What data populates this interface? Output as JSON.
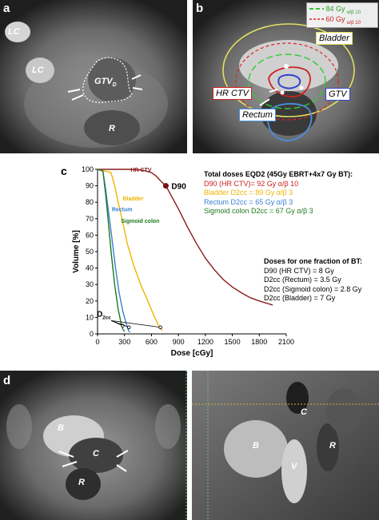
{
  "panels": {
    "a": {
      "letter": "a",
      "labels": {
        "lc_top": "LC",
        "lc_mid": "LC",
        "gtv": "GTV",
        "gtv_sub": "D",
        "r": "R"
      }
    },
    "b": {
      "letter": "b",
      "legend": [
        {
          "text": "84 Gy",
          "sub": "α/β 10",
          "color": "#2ecc2e",
          "dash": "8,4"
        },
        {
          "text": "60 Gy",
          "sub": "α/β 10",
          "color": "#d22",
          "dash": "4,3"
        }
      ],
      "labels": {
        "bladder": "Bladder",
        "hr_ctv": "HR CTV",
        "gtv": "GTV",
        "rectum": "Rectum"
      }
    },
    "c": {
      "letter": "c"
    },
    "d": {
      "letter": "d",
      "labels": {
        "b_left": "B",
        "c_left": "C",
        "r_left": "R",
        "b_right": "B",
        "c_right": "C",
        "v_right": "V",
        "r_right": "R"
      }
    }
  },
  "chart_data": {
    "type": "line",
    "xlabel": "Dose [cGy]",
    "ylabel": "Volume [%]",
    "xlim": [
      0,
      2100
    ],
    "ylim": [
      0,
      100
    ],
    "xticks": [
      0,
      300,
      600,
      900,
      1200,
      1500,
      1800,
      2100
    ],
    "yticks": [
      0,
      10,
      20,
      30,
      40,
      50,
      60,
      70,
      80,
      90,
      100
    ],
    "series": [
      {
        "name": "HR CTV",
        "color": "#8b1a1a",
        "x": [
          0,
          350,
          500,
          600,
          650,
          700,
          760,
          800,
          900,
          1000,
          1100,
          1200,
          1300,
          1400,
          1500,
          1600,
          1700,
          1800,
          1950
        ],
        "y": [
          100,
          100,
          99.5,
          98,
          96,
          93,
          90,
          86,
          76,
          65,
          55,
          46,
          39,
          33,
          28.5,
          25,
          22,
          20,
          17.5
        ]
      },
      {
        "name": "Bladder",
        "color": "#f0b400",
        "x": [
          0,
          150,
          190,
          230,
          280,
          330,
          400,
          480,
          560,
          620,
          680,
          720
        ],
        "y": [
          100,
          98,
          90,
          80,
          68,
          55,
          42,
          30,
          20,
          12,
          5,
          2
        ]
      },
      {
        "name": "Rectum",
        "color": "#3a80d0",
        "x": [
          0,
          60,
          90,
          120,
          160,
          200,
          240,
          280,
          320,
          345,
          360
        ],
        "y": [
          100,
          99,
          88,
          75,
          58,
          40,
          25,
          14,
          6,
          2,
          1
        ]
      },
      {
        "name": "Sigmoid colon",
        "color": "#1e7a1e",
        "x": [
          0,
          60,
          90,
          120,
          150,
          190,
          230,
          260,
          280,
          300
        ],
        "y": [
          100,
          99,
          85,
          68,
          50,
          30,
          15,
          7,
          3,
          1.5
        ]
      }
    ],
    "annotations": {
      "d90_label": "D90",
      "d90_x": 760,
      "d90_y": 90,
      "d2cc_label": "D",
      "d2cc_sub": "2cc"
    },
    "d2cc_points": [
      {
        "x": 280,
        "y": 5
      },
      {
        "x": 350,
        "y": 4
      },
      {
        "x": 700,
        "y": 4
      }
    ],
    "curve_labels": {
      "hr_ctv": "HR CTV",
      "bladder": "Bladder",
      "rectum": "Rectum",
      "sigmoid": "Sigmoid colon"
    }
  },
  "text_block_1": {
    "title": "Total doses EQD2 (45Gy EBRT+4x7 Gy BT):",
    "lines": [
      {
        "text": "D90 (HR CTV)= 92 Gy α/β 10",
        "color": "#c81e1e"
      },
      {
        "text": "Bladder D2cc = 89 Gy α/β 3",
        "color": "#f0b400"
      },
      {
        "text": "Rectum D2cc = 65 Gy α/β 3",
        "color": "#3a80d0"
      },
      {
        "text": "Sigmoid colon D2cc = 67 Gy α/β 3",
        "color": "#1e7a1e"
      }
    ]
  },
  "text_block_2": {
    "title": "Doses for one fraction of BT:",
    "lines": [
      "D90 (HR CTV) = 8 Gy",
      "D2cc (Rectum) = 3.5 Gy",
      "D2cc (Sigmoid colon) = 2.8 Gy",
      "D2cc (Bladder) = 7 Gy"
    ]
  }
}
